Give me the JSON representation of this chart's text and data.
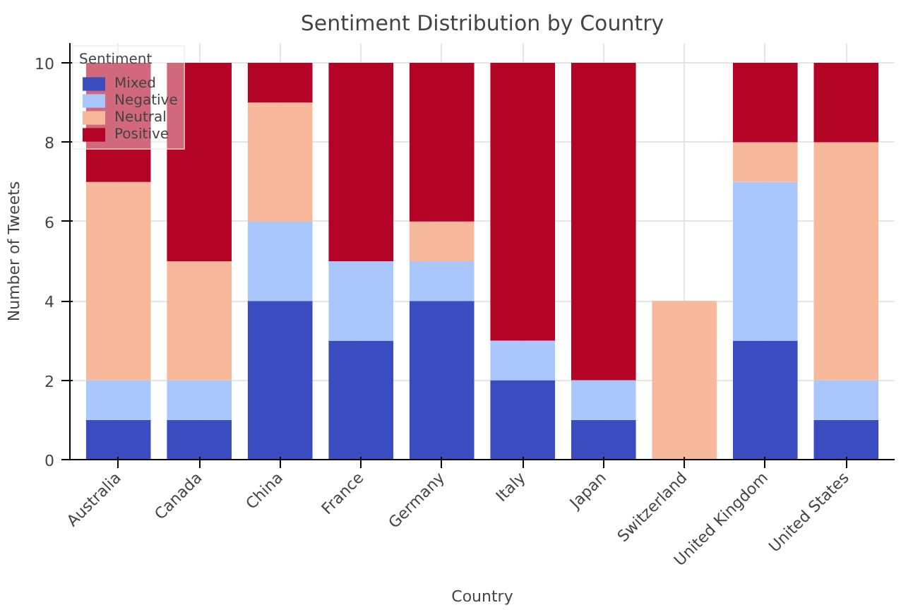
{
  "chart_data": {
    "type": "bar",
    "title": "Sentiment Distribution by Country",
    "xlabel": "Country",
    "ylabel": "Number of Tweets",
    "legend_title": "Sentiment",
    "stacked": true,
    "grid": true,
    "legend": "top left",
    "categories": [
      "Australia",
      "Canada",
      "China",
      "France",
      "Germany",
      "Italy",
      "Japan",
      "Switzerland",
      "United Kingdom",
      "United States"
    ],
    "ylim": [
      0,
      10.5
    ],
    "yticks": [
      0,
      2,
      4,
      6,
      8,
      10
    ],
    "series": [
      {
        "name": "Mixed",
        "color": "#3b4cc0",
        "values": [
          1,
          1,
          4,
          3,
          4,
          2,
          1,
          0,
          3,
          1
        ]
      },
      {
        "name": "Negative",
        "color": "#aac7fd",
        "values": [
          1,
          1,
          2,
          2,
          1,
          1,
          1,
          0,
          4,
          1
        ]
      },
      {
        "name": "Neutral",
        "color": "#f7b89c",
        "values": [
          5,
          3,
          3,
          0,
          1,
          0,
          0,
          4,
          1,
          6
        ]
      },
      {
        "name": "Positive",
        "color": "#b40426",
        "values": [
          3,
          5,
          1,
          5,
          4,
          7,
          8,
          0,
          2,
          2
        ]
      }
    ]
  }
}
